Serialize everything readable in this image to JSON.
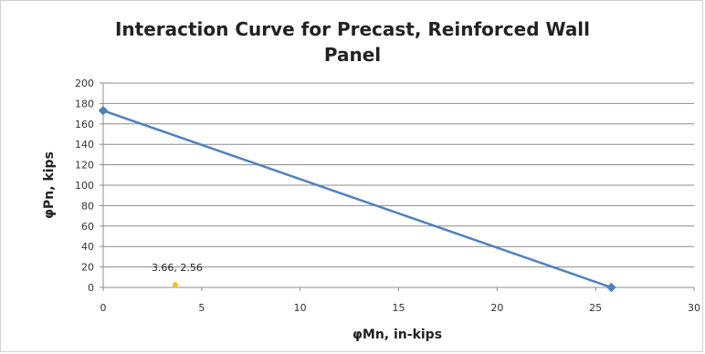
{
  "chart_data": {
    "type": "scatter",
    "title_line1": "Interaction Curve for Precast, Reinforced Wall",
    "title_line2": "Panel",
    "xlabel": "φMn, in-kips",
    "ylabel": "φPn, kips",
    "xlim": [
      0,
      30
    ],
    "ylim": [
      0,
      200
    ],
    "xticks": [
      0,
      5,
      10,
      15,
      20,
      25,
      30
    ],
    "yticks": [
      0,
      20,
      40,
      60,
      80,
      100,
      120,
      140,
      160,
      180,
      200
    ],
    "grid": true,
    "series": [
      {
        "type": "line",
        "color": "#4f81bd",
        "marker": "diamond",
        "points": [
          [
            0,
            173
          ],
          [
            25.8,
            0
          ]
        ]
      },
      {
        "type": "scatter",
        "color": "#ffc000",
        "marker": "diamond",
        "points": [
          [
            3.66,
            2.56
          ]
        ],
        "data_label": "3.66, 2.56"
      }
    ]
  }
}
